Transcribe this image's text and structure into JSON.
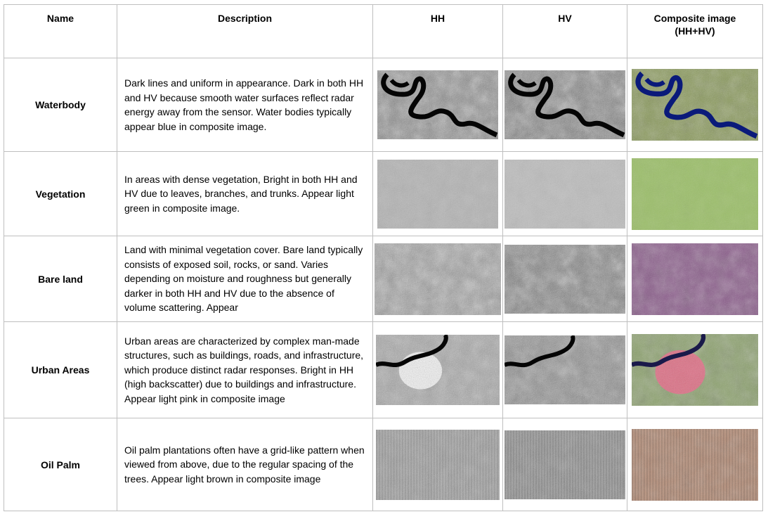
{
  "headers": {
    "name": "Name",
    "description": "Description",
    "hh": "HH",
    "hv": "HV",
    "composite_line1": "Composite image",
    "composite_line2": "(HH+HV)"
  },
  "rows": [
    {
      "name": "Waterbody",
      "description": "Dark lines and uniform in appearance. Dark in both HH and HV because smooth water surfaces reflect radar energy away from the sensor. Water bodies typically appear blue in composite image.",
      "images": {
        "hh": "waterbody-hh-image",
        "hv": "waterbody-hv-image",
        "composite": "waterbody-composite-image"
      }
    },
    {
      "name": "Vegetation",
      "description": "In areas with dense vegetation, Bright in both HH and HV due to leaves, branches, and trunks. Appear light green in composite image.",
      "images": {
        "hh": "vegetation-hh-image",
        "hv": "vegetation-hv-image",
        "composite": "vegetation-composite-image"
      }
    },
    {
      "name": "Bare land",
      "description": "Land with minimal vegetation cover. Bare land typically consists of exposed soil, rocks, or sand. Varies depending on moisture and roughness but generally darker in both HH and HV due to the absence of volume scattering. Appear",
      "images": {
        "hh": "bare-land-hh-image",
        "hv": "bare-land-hv-image",
        "composite": "bare-land-composite-image"
      }
    },
    {
      "name": "Urban Areas",
      "description": "Urban areas are characterized by complex man-made structures, such as buildings, roads, and infrastructure, which produce distinct radar responses. Bright in HH (high backscatter) due to buildings and infrastructure. Appear light pink  in composite image",
      "images": {
        "hh": "urban-hh-image",
        "hv": "urban-hv-image",
        "composite": "urban-composite-image"
      }
    },
    {
      "name": "Oil Palm",
      "description": "Oil palm plantations often have a grid-like pattern when viewed from above, due to the regular spacing of the trees. Appear light brown  in composite image",
      "images": {
        "hh": "oil-palm-hh-image",
        "hv": "oil-palm-hv-image",
        "composite": "oil-palm-composite-image"
      }
    }
  ],
  "colors": {
    "border": "#bfbfbf",
    "water_composite": "#0a1a7a",
    "vegetation_composite": "#9cbf6a",
    "bare_composite": "#8a5a8a",
    "urban_composite": "#e86a8a",
    "oilpalm_composite": "#b8907a"
  }
}
